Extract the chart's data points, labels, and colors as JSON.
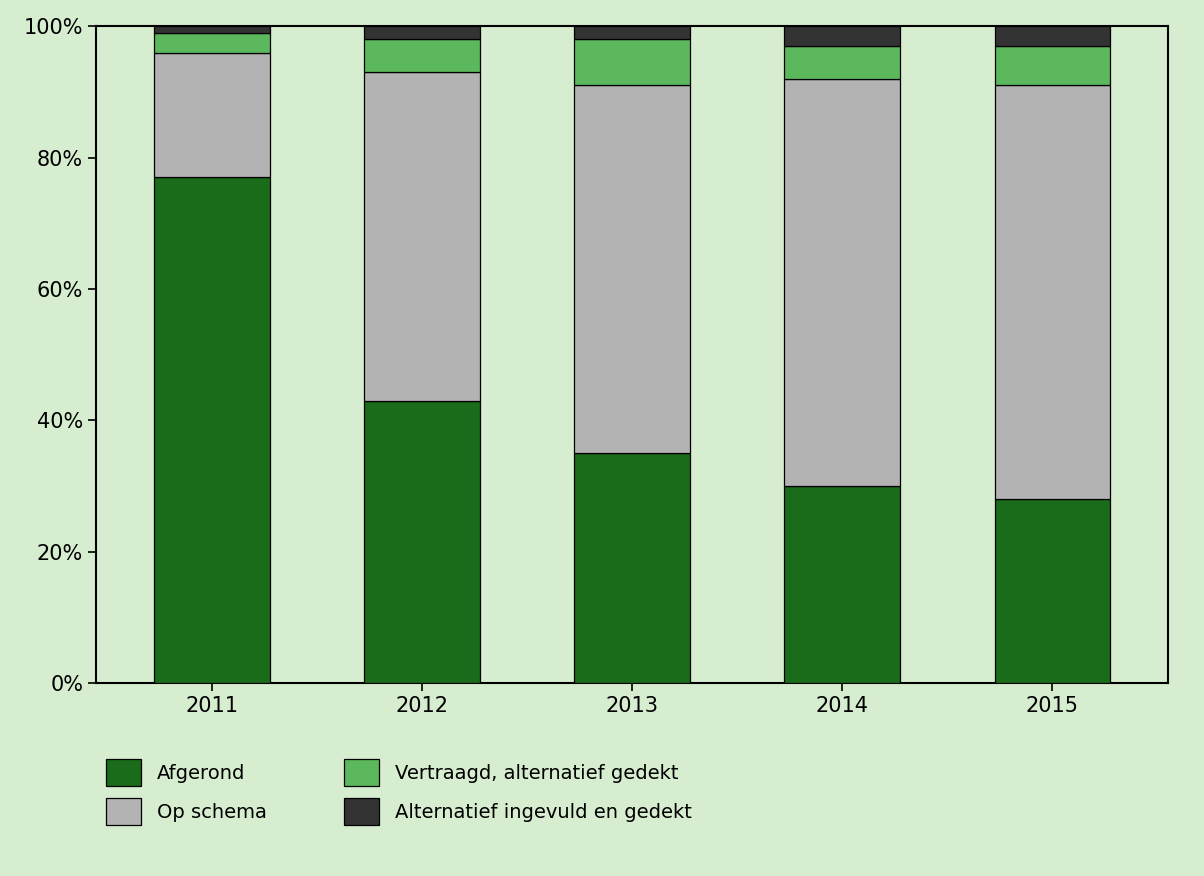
{
  "years": [
    "2011",
    "2012",
    "2013",
    "2014",
    "2015"
  ],
  "afgerond": [
    77,
    43,
    35,
    30,
    28
  ],
  "op_schema": [
    19,
    50,
    56,
    62,
    63
  ],
  "vertraagd": [
    3,
    5,
    7,
    5,
    6
  ],
  "alternatief": [
    1,
    2,
    2,
    3,
    3
  ],
  "color_afgerond": "#1a6b1a",
  "color_op_schema": "#b3b3b3",
  "color_vertraagd": "#5cb85c",
  "color_alternatief": "#333333",
  "color_background": "#d6edcf",
  "color_plot_bg": "#d6edcf",
  "bar_width": 0.55,
  "ytick_labels": [
    "0%",
    "20%",
    "40%",
    "60%",
    "80%",
    "100%"
  ],
  "ytick_values": [
    0,
    20,
    40,
    60,
    80,
    100
  ],
  "legend_entries": [
    {
      "label": "Afgerond",
      "color": "#1a6b1a",
      "col": 0
    },
    {
      "label": "Vertraagd, alternatief gedekt",
      "color": "#5cb85c",
      "col": 0
    },
    {
      "label": "Op schema",
      "color": "#b3b3b3",
      "col": 1
    },
    {
      "label": "Alternatief ingevuld en gedekt",
      "color": "#333333",
      "col": 1
    }
  ]
}
